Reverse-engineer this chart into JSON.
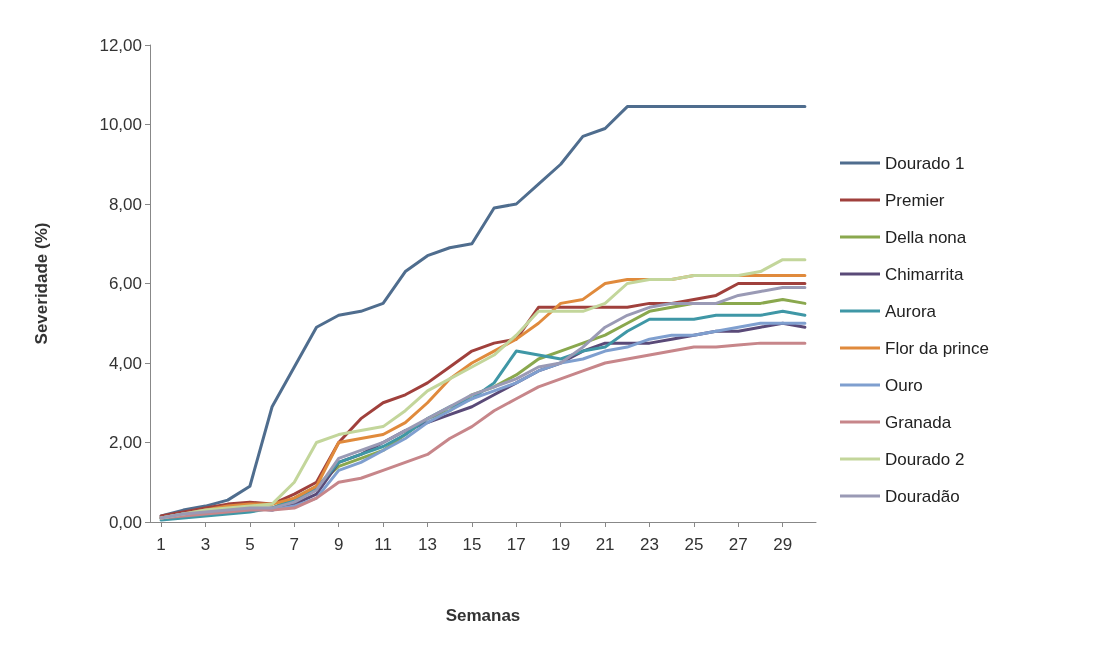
{
  "chart_data": {
    "type": "line",
    "xlabel": "Semanas",
    "ylabel": "Severidade (%)",
    "x": [
      1,
      2,
      3,
      4,
      5,
      6,
      7,
      8,
      9,
      10,
      11,
      12,
      13,
      14,
      15,
      16,
      17,
      18,
      19,
      20,
      21,
      22,
      23,
      24,
      25,
      26,
      27,
      28,
      29,
      30
    ],
    "xlim": [
      0.5,
      30.5
    ],
    "xticks": [
      1,
      3,
      5,
      7,
      9,
      11,
      13,
      15,
      17,
      19,
      21,
      23,
      25,
      27,
      29
    ],
    "ylim": [
      0,
      12
    ],
    "yticks": [
      {
        "value": 0,
        "label": "0,00"
      },
      {
        "value": 2,
        "label": "2,00"
      },
      {
        "value": 4,
        "label": "4,00"
      },
      {
        "value": 6,
        "label": "6,00"
      },
      {
        "value": 8,
        "label": "8,00"
      },
      {
        "value": 10,
        "label": "10,00"
      },
      {
        "value": 12,
        "label": "12,00"
      }
    ],
    "grid": false,
    "legend": "right",
    "marker": "none",
    "line_style": "solid",
    "series": [
      {
        "name": "Dourado 1",
        "color": "#4f6d8e",
        "values": [
          0.15,
          0.3,
          0.4,
          0.55,
          0.9,
          2.9,
          3.9,
          4.9,
          5.2,
          5.3,
          5.5,
          6.3,
          6.7,
          6.9,
          7.0,
          7.9,
          8.0,
          8.5,
          9.0,
          9.7,
          9.9,
          10.45,
          10.45,
          10.45,
          10.45,
          10.45,
          10.45,
          10.45,
          10.45,
          10.45
        ]
      },
      {
        "name": "Premier",
        "color": "#a0403c",
        "values": [
          0.15,
          0.25,
          0.35,
          0.45,
          0.5,
          0.45,
          0.7,
          1.0,
          2.0,
          2.6,
          3.0,
          3.2,
          3.5,
          3.9,
          4.3,
          4.5,
          4.6,
          5.4,
          5.4,
          5.4,
          5.4,
          5.4,
          5.5,
          5.5,
          5.6,
          5.7,
          6.0,
          6.0,
          6.0,
          6.0
        ]
      },
      {
        "name": "Della nona",
        "color": "#8aa84e",
        "values": [
          0.1,
          0.2,
          0.25,
          0.3,
          0.35,
          0.35,
          0.6,
          0.9,
          1.4,
          1.6,
          1.8,
          2.2,
          2.6,
          2.8,
          3.2,
          3.4,
          3.7,
          4.1,
          4.3,
          4.5,
          4.7,
          5.0,
          5.3,
          5.4,
          5.5,
          5.5,
          5.5,
          5.5,
          5.6,
          5.5
        ]
      },
      {
        "name": "Chimarrita",
        "color": "#5a4a78",
        "values": [
          0.1,
          0.2,
          0.25,
          0.3,
          0.35,
          0.3,
          0.45,
          0.7,
          1.5,
          1.7,
          2.0,
          2.3,
          2.5,
          2.7,
          2.9,
          3.2,
          3.5,
          3.8,
          4.0,
          4.3,
          4.5,
          4.5,
          4.5,
          4.6,
          4.7,
          4.8,
          4.8,
          4.9,
          5.0,
          4.9
        ]
      },
      {
        "name": "Aurora",
        "color": "#3f97a6",
        "values": [
          0.05,
          0.1,
          0.15,
          0.2,
          0.25,
          0.35,
          0.55,
          0.85,
          1.5,
          1.7,
          1.9,
          2.2,
          2.6,
          2.9,
          3.1,
          3.5,
          4.3,
          4.2,
          4.1,
          4.3,
          4.4,
          4.8,
          5.1,
          5.1,
          5.1,
          5.2,
          5.2,
          5.2,
          5.3,
          5.2
        ]
      },
      {
        "name": "Flor da prince",
        "color": "#e08a3c",
        "values": [
          0.1,
          0.2,
          0.3,
          0.4,
          0.45,
          0.45,
          0.6,
          0.9,
          2.0,
          2.1,
          2.2,
          2.5,
          3.0,
          3.6,
          4.0,
          4.3,
          4.6,
          5.0,
          5.5,
          5.6,
          6.0,
          6.1,
          6.1,
          6.1,
          6.2,
          6.2,
          6.2,
          6.2,
          6.2,
          6.2
        ]
      },
      {
        "name": "Ouro",
        "color": "#7f9fcf",
        "values": [
          0.1,
          0.2,
          0.25,
          0.3,
          0.35,
          0.3,
          0.4,
          0.6,
          1.3,
          1.5,
          1.8,
          2.1,
          2.5,
          2.8,
          3.1,
          3.3,
          3.5,
          3.8,
          4.0,
          4.1,
          4.3,
          4.4,
          4.6,
          4.7,
          4.7,
          4.8,
          4.9,
          5.0,
          5.0,
          5.0
        ]
      },
      {
        "name": "Granada",
        "color": "#c7868a",
        "values": [
          0.1,
          0.15,
          0.2,
          0.25,
          0.3,
          0.3,
          0.35,
          0.6,
          1.0,
          1.1,
          1.3,
          1.5,
          1.7,
          2.1,
          2.4,
          2.8,
          3.1,
          3.4,
          3.6,
          3.8,
          4.0,
          4.1,
          4.2,
          4.3,
          4.4,
          4.4,
          4.45,
          4.5,
          4.5,
          4.5
        ]
      },
      {
        "name": "Dourado 2",
        "color": "#c3d69b",
        "values": [
          0.1,
          0.2,
          0.3,
          0.35,
          0.4,
          0.45,
          1.0,
          2.0,
          2.2,
          2.3,
          2.4,
          2.8,
          3.3,
          3.6,
          3.9,
          4.2,
          4.7,
          5.3,
          5.3,
          5.3,
          5.5,
          6.0,
          6.1,
          6.1,
          6.2,
          6.2,
          6.2,
          6.3,
          6.6,
          6.6
        ]
      },
      {
        "name": "Douradão",
        "color": "#9a9ab5",
        "values": [
          0.1,
          0.2,
          0.25,
          0.3,
          0.35,
          0.35,
          0.5,
          0.8,
          1.6,
          1.8,
          2.0,
          2.3,
          2.6,
          2.9,
          3.2,
          3.4,
          3.6,
          3.9,
          4.0,
          4.4,
          4.9,
          5.2,
          5.4,
          5.5,
          5.5,
          5.5,
          5.7,
          5.8,
          5.9,
          5.9
        ]
      }
    ]
  }
}
